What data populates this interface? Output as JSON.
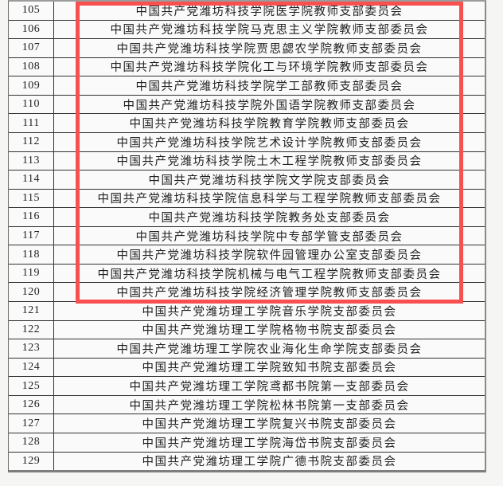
{
  "page": {
    "background_color": "#f5f5f4",
    "description_rows_visible": "105-129"
  },
  "highlight_box": {
    "color": "#f94f4f",
    "first_row": "105",
    "last_row": "120"
  },
  "table": {
    "rows": [
      {
        "num": "105",
        "name": "中国共产党潍坊科技学院医学院教师支部委员会",
        "highlighted": true
      },
      {
        "num": "106",
        "name": "中国共产党潍坊科技学院马克思主义学院教师支部委员会",
        "highlighted": true
      },
      {
        "num": "107",
        "name": "中国共产党潍坊科技学院贾思勰农学院教师支部委员会",
        "highlighted": true
      },
      {
        "num": "108",
        "name": "中国共产党潍坊科技学院化工与环境学院教师支部委员会",
        "highlighted": true
      },
      {
        "num": "109",
        "name": "中国共产党潍坊科技学院学工部教师支部委员会",
        "highlighted": true
      },
      {
        "num": "110",
        "name": "中国共产党潍坊科技学院外国语学院教师支部委员会",
        "highlighted": true
      },
      {
        "num": "111",
        "name": "中国共产党潍坊科技学院教育学院教师支部委员会",
        "highlighted": true
      },
      {
        "num": "112",
        "name": "中国共产党潍坊科技学院艺术设计学院教师支部委员会",
        "highlighted": true
      },
      {
        "num": "113",
        "name": "中国共产党潍坊科技学院土木工程学院教师支部委员会",
        "highlighted": true
      },
      {
        "num": "114",
        "name": "中国共产党潍坊科技学院文学院支部委员会",
        "highlighted": true
      },
      {
        "num": "115",
        "name": "中国共产党潍坊科技学院信息科学与工程学院教师支部委员会",
        "highlighted": true
      },
      {
        "num": "116",
        "name": "中国共产党潍坊科技学院教务处支部委员会",
        "highlighted": true
      },
      {
        "num": "117",
        "name": "中国共产党潍坊科技学院中专部学管支部委员会",
        "highlighted": true
      },
      {
        "num": "118",
        "name": "中国共产党潍坊科技学院软件园管理办公室支部委员会",
        "highlighted": true
      },
      {
        "num": "119",
        "name": "中国共产党潍坊科技学院机械与电气工程学院教师支部委员会",
        "highlighted": true
      },
      {
        "num": "120",
        "name": "中国共产党潍坊科技学院经济管理学院教师支部委员会",
        "highlighted": true
      },
      {
        "num": "121",
        "name": "中国共产党潍坊理工学院音乐学院支部委员会",
        "highlighted": false
      },
      {
        "num": "122",
        "name": "中国共产党潍坊理工学院格物书院支部委员会",
        "highlighted": false
      },
      {
        "num": "123",
        "name": "中国共产党潍坊理工学院农业海化生命学院支部委员会",
        "highlighted": false
      },
      {
        "num": "124",
        "name": "中国共产党潍坊理工学院致知书院支部委员会",
        "highlighted": false
      },
      {
        "num": "125",
        "name": "中国共产党潍坊理工学院鸢都书院第一支部委员会",
        "highlighted": false
      },
      {
        "num": "126",
        "name": "中国共产党潍坊理工学院松林书院第一支部委员会",
        "highlighted": false
      },
      {
        "num": "127",
        "name": "中国共产党潍坊理工学院复兴书院支部委员会",
        "highlighted": false
      },
      {
        "num": "128",
        "name": "中国共产党潍坊理工学院海岱书院支部委员会",
        "highlighted": false
      },
      {
        "num": "129",
        "name": "中国共产党潍坊理工学院广德书院支部委员会",
        "highlighted": false
      }
    ]
  }
}
